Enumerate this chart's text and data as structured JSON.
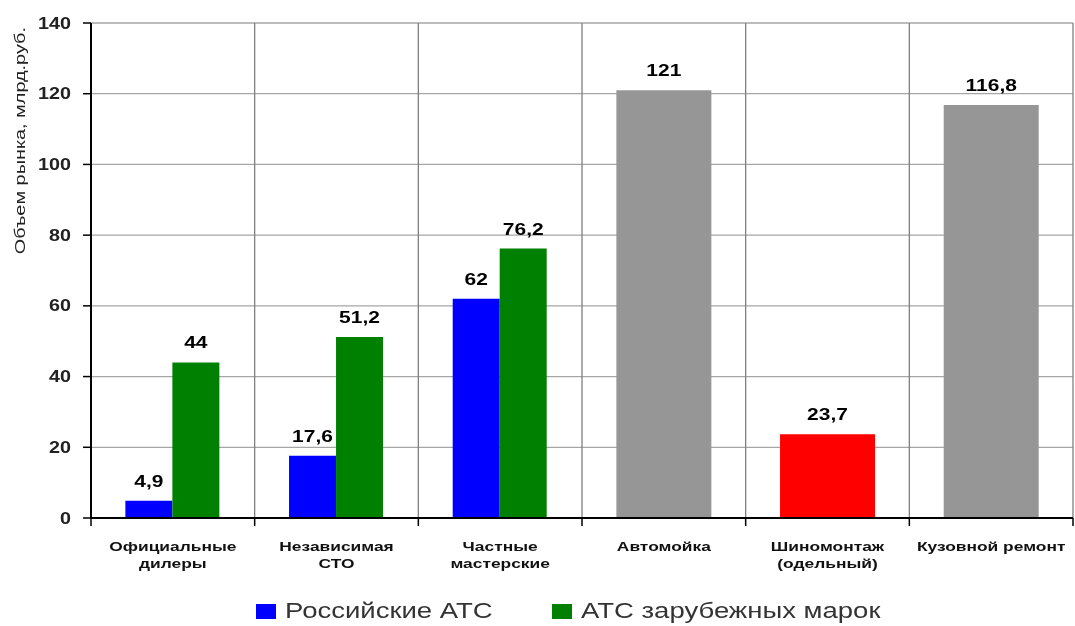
{
  "chart_data": {
    "type": "bar",
    "ylabel": "Объем рынка, млрд.руб.",
    "categories": [
      "Официальные дилеры",
      "Независимая СТО",
      "Частные мастерские",
      "Автомойка",
      "Шиномонтаж (одельный)",
      "Кузовной ремонт"
    ],
    "series": [
      {
        "name": "Российские АТС",
        "color": "#0000ff",
        "values": [
          4.9,
          17.6,
          62,
          null,
          null,
          null
        ],
        "value_labels": [
          "4,9",
          "17,6",
          "62",
          null,
          null,
          null
        ]
      },
      {
        "name": "АТС зарубежных марок",
        "color": "#008000",
        "values": [
          44,
          51.2,
          76.2,
          null,
          null,
          null
        ],
        "value_labels": [
          "44",
          "51,2",
          "76,2",
          null,
          null,
          null
        ]
      },
      {
        "colors": [
          null,
          null,
          null,
          "#969696",
          "#ff0000",
          "#969696"
        ],
        "values": [
          null,
          null,
          null,
          121,
          23.7,
          116.8
        ],
        "value_labels": [
          null,
          null,
          null,
          "121",
          "23,7",
          "116,8"
        ]
      }
    ],
    "ylim": [
      0,
      140
    ],
    "yticks": [
      0,
      20,
      40,
      60,
      80,
      100,
      120,
      140
    ],
    "grid": true,
    "legend": "bottom"
  }
}
